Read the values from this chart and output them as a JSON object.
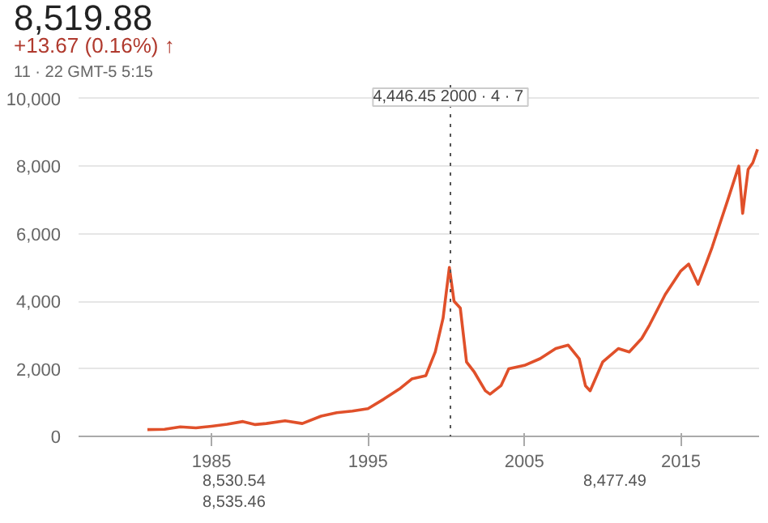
{
  "chart_data": {
    "type": "line",
    "title": "8,519.88",
    "subtitle": "+13.67 (0.16%) ↑",
    "annotations": [
      "11 · 22   GMT-5   5:15",
      "8,530.54",
      "8,535.46",
      "8,477.49"
    ],
    "x": [
      1980.9,
      1982,
      1983,
      1984,
      1985,
      1986,
      1987,
      1987.8,
      1988.5,
      1989.7,
      1990.8,
      1992,
      1993,
      1994,
      1995,
      1996,
      1997,
      1997.8,
      1998.7,
      1999.3,
      1999.8,
      2000.2,
      2000.5,
      2000.9,
      2001.3,
      2001.8,
      2002.5,
      2002.8,
      2003.5,
      2004,
      2005,
      2006,
      2007,
      2007.8,
      2008.5,
      2008.9,
      2009.2,
      2010,
      2011,
      2011.7,
      2012.5,
      2013,
      2014,
      2015,
      2015.5,
      2016.1,
      2016.6,
      2017,
      2018,
      2018.7,
      2018.95,
      2019.3,
      2019.6,
      2019.9
    ],
    "series": [
      {
        "color": "#e0502a",
        "values": [
          200,
          210,
          280,
          250,
          300,
          360,
          440,
          350,
          380,
          460,
          380,
          600,
          700,
          750,
          820,
          1100,
          1400,
          1700,
          1800,
          2500,
          3500,
          5000,
          4000,
          3800,
          2200,
          1900,
          1350,
          1250,
          1500,
          2000,
          2100,
          2300,
          2600,
          2700,
          2300,
          1500,
          1350,
          2200,
          2600,
          2500,
          2900,
          3300,
          4200,
          4900,
          5100,
          4500,
          5100,
          5600,
          7000,
          8000,
          6600,
          7900,
          8100,
          8500
        ]
      }
    ],
    "xlim": [
      1976.5,
      2020
    ],
    "ylim": [
      0,
      10400
    ],
    "xticks": [
      1985,
      1995,
      2005,
      2015
    ],
    "yticks": [
      0,
      {
        "value": 2000,
        "label": "2,000"
      },
      {
        "value": 4000,
        "label": "4,000"
      },
      {
        "value": 6000,
        "label": "6,000"
      },
      {
        "value": 8000,
        "label": "8,000"
      },
      {
        "value": 10000,
        "label": "10,000"
      }
    ],
    "grid": "y",
    "line_style": "solid",
    "ref_lines": [
      {
        "axis": "x",
        "value": 2000.27,
        "label": "4,446.45  2000 · 4 · 7",
        "line_style": "dotted",
        "color": "#555555"
      }
    ]
  }
}
